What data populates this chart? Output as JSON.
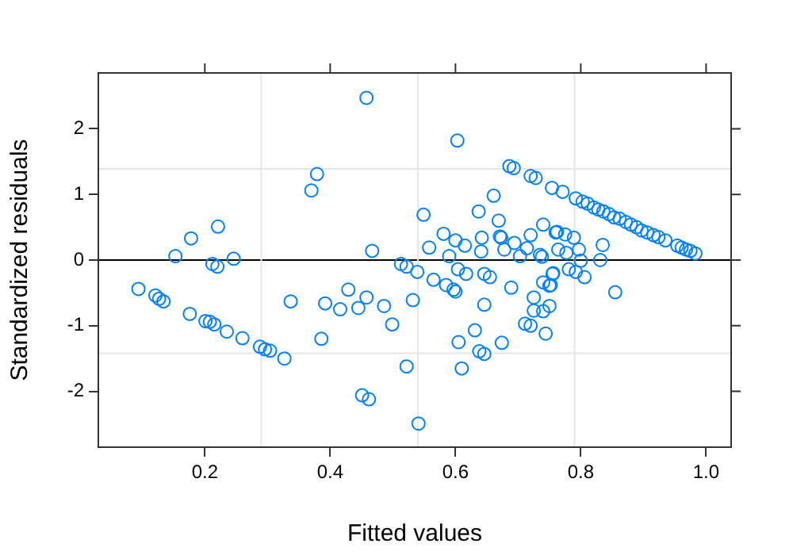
{
  "chart_data": {
    "type": "scatter",
    "xlabel": "Fitted values",
    "ylabel": "Standardized residuals",
    "xlim": [
      0.03,
      1.04
    ],
    "ylim": [
      -2.85,
      2.85
    ],
    "xticks": [
      0.2,
      0.4,
      0.6,
      0.8,
      {
        "value": 1,
        "label": "1.0"
      }
    ],
    "yticks": [
      -2,
      -1,
      0,
      1,
      2
    ],
    "grid": false,
    "legend": false,
    "marker": "circle",
    "ref_lines": [
      {
        "axis": "y",
        "value": 0,
        "color": "#000000"
      },
      {
        "axis": "x",
        "value": 0.29,
        "color": "#e6e6e6"
      },
      {
        "axis": "x",
        "value": 0.54,
        "color": "#e6e6e6"
      },
      {
        "axis": "x",
        "value": 0.79,
        "color": "#e6e6e6"
      },
      {
        "axis": "y",
        "value": 1.39,
        "color": "#e6e6e6"
      },
      {
        "axis": "y",
        "value": -1.42,
        "color": "#e6e6e6"
      }
    ],
    "series": [
      {
        "color": "#0080ff",
        "x": [
          0.094,
          0.121,
          0.127,
          0.134,
          0.153,
          0.178,
          0.176,
          0.201,
          0.208,
          0.215,
          0.221,
          0.212,
          0.22,
          0.246,
          0.235,
          0.26,
          0.288,
          0.296,
          0.304,
          0.327,
          0.337,
          0.37,
          0.379,
          0.392,
          0.386,
          0.458,
          0.603,
          0.686,
          0.693,
          0.72,
          0.728,
          0.754,
          0.661,
          0.549,
          0.637,
          0.669,
          0.74,
          0.581,
          0.6,
          0.615,
          0.642,
          0.671,
          0.673,
          0.72,
          0.76,
          0.558,
          0.641,
          0.678,
          0.694,
          0.714,
          0.59,
          0.703,
          0.735,
          0.738,
          0.467,
          0.513,
          0.522,
          0.539,
          0.565,
          0.604,
          0.617,
          0.646,
          0.655,
          0.585,
          0.597,
          0.6,
          0.689,
          0.74,
          0.75,
          0.756,
          0.725,
          0.429,
          0.458,
          0.416,
          0.445,
          0.486,
          0.532,
          0.499,
          0.646,
          0.725,
          0.74,
          0.75,
          0.711,
          0.72,
          0.744,
          0.631,
          0.605,
          0.674,
          0.638,
          0.646,
          0.522,
          0.61,
          0.451,
          0.462,
          0.541,
          0.771,
          0.792,
          0.803,
          0.811,
          0.821,
          0.828,
          0.836,
          0.845,
          0.853,
          0.862,
          0.872,
          0.88,
          0.889,
          0.897,
          0.906,
          0.916,
          0.924,
          0.935,
          0.954,
          0.961,
          0.968,
          0.975,
          0.983,
          0.762,
          0.775,
          0.789,
          0.764,
          0.777,
          0.797,
          0.835,
          0.831,
          0.8,
          0.781,
          0.792,
          0.806,
          0.755,
          0.752,
          0.855
        ],
        "values": [
          -0.44,
          -0.54,
          -0.59,
          -0.63,
          0.06,
          0.33,
          -0.82,
          -0.93,
          -0.94,
          -0.98,
          0.51,
          -0.06,
          -0.1,
          0.02,
          -1.09,
          -1.19,
          -1.32,
          -1.36,
          -1.38,
          -1.5,
          -0.63,
          1.06,
          1.31,
          -0.66,
          -1.2,
          2.47,
          1.82,
          1.43,
          1.4,
          1.28,
          1.25,
          1.1,
          0.98,
          0.69,
          0.74,
          0.6,
          0.54,
          0.4,
          0.3,
          0.22,
          0.34,
          0.36,
          0.34,
          0.38,
          0.42,
          0.19,
          0.13,
          0.16,
          0.26,
          0.18,
          0.06,
          0.06,
          0.08,
          0.05,
          0.14,
          -0.06,
          -0.1,
          -0.18,
          -0.3,
          -0.14,
          -0.21,
          -0.21,
          -0.26,
          -0.38,
          -0.45,
          -0.48,
          -0.42,
          -0.34,
          -0.39,
          -0.2,
          -0.57,
          -0.45,
          -0.57,
          -0.75,
          -0.73,
          -0.7,
          -0.61,
          -0.98,
          -0.68,
          -0.77,
          -0.78,
          -0.7,
          -0.97,
          -1.0,
          -1.12,
          -1.07,
          -1.25,
          -1.26,
          -1.39,
          -1.43,
          -1.62,
          -1.65,
          -2.06,
          -2.12,
          -2.49,
          1.04,
          0.94,
          0.89,
          0.86,
          0.8,
          0.77,
          0.74,
          0.7,
          0.65,
          0.63,
          0.58,
          0.54,
          0.5,
          0.45,
          0.42,
          0.38,
          0.35,
          0.3,
          0.22,
          0.19,
          0.16,
          0.14,
          0.1,
          0.43,
          0.39,
          0.34,
          0.16,
          0.11,
          0.16,
          0.23,
          0.0,
          -0.01,
          -0.14,
          -0.18,
          -0.26,
          -0.21,
          -0.38,
          -0.49
        ]
      }
    ]
  }
}
